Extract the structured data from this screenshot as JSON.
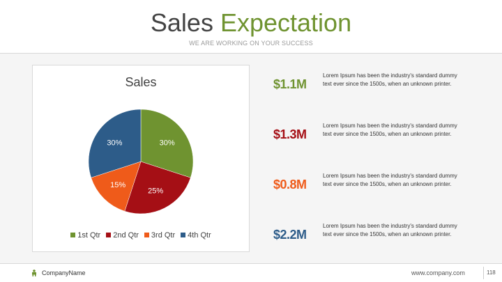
{
  "header": {
    "title_main": "Sales",
    "title_accent": "Expectation",
    "subtitle": "WE ARE WORKING ON YOUR SUCCESS"
  },
  "colors": {
    "accent": "#6f9330",
    "q1": "#6f9330",
    "q2": "#a50f15",
    "q3": "#ef5b1a",
    "q4": "#2d5c89"
  },
  "chart_data": {
    "type": "pie",
    "title": "Sales",
    "categories": [
      "1st Qtr",
      "2nd Qtr",
      "3rd Qtr",
      "4th Qtr"
    ],
    "values": [
      30,
      25,
      15,
      30
    ],
    "labels": [
      "30%",
      "25%",
      "15%",
      "30%"
    ],
    "colors": [
      "#6f9330",
      "#a50f15",
      "#ef5b1a",
      "#2d5c89"
    ],
    "legend": "bottom"
  },
  "stats": [
    {
      "value": "$1.1M",
      "color": "#6f9330",
      "desc": "Lorem Ipsum has been the industry's standard dummy text ever since the 1500s, when an unknown printer."
    },
    {
      "value": "$1.3M",
      "color": "#a50f15",
      "desc": "Lorem Ipsum has been the industry's standard dummy text ever since the 1500s, when an unknown printer."
    },
    {
      "value": "$0.8M",
      "color": "#ef5b1a",
      "desc": "Lorem Ipsum has been the industry's standard dummy text ever since the 1500s, when an unknown printer."
    },
    {
      "value": "$2.2M",
      "color": "#2d5c89",
      "desc": "Lorem Ipsum has been the industry's standard dummy text ever since the 1500s, when an unknown printer."
    }
  ],
  "footer": {
    "company": "CompanyName",
    "url": "www.company.com",
    "page": "118",
    "logo_icon": "person-icon"
  }
}
